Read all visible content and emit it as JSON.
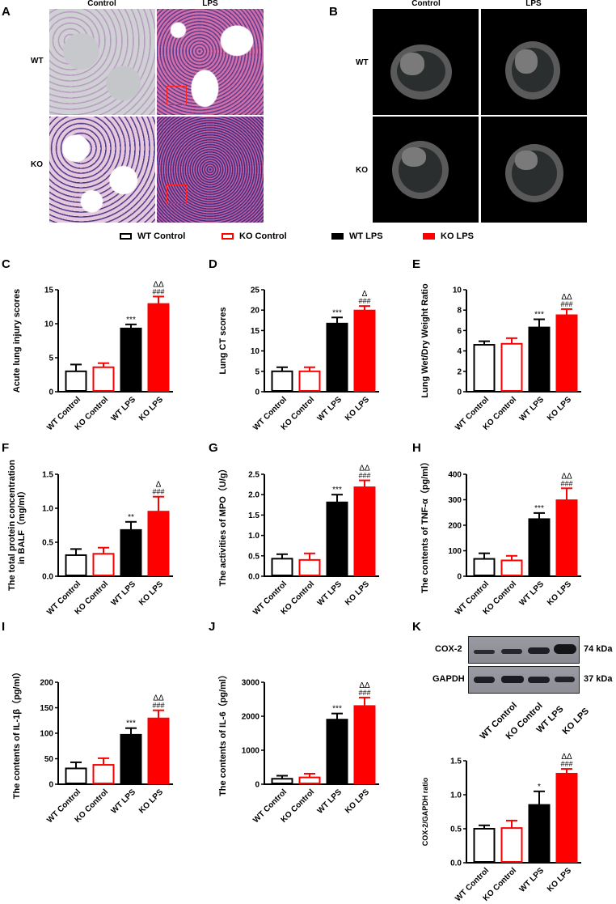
{
  "panels": {
    "A": {
      "label": "A",
      "columns": [
        "Control",
        "LPS"
      ],
      "rows": [
        "WT",
        "KO"
      ]
    },
    "B": {
      "label": "B",
      "columns": [
        "Control",
        "LPS"
      ],
      "rows": [
        "WT",
        "KO"
      ]
    },
    "K": {
      "label": "K",
      "blot": {
        "bands": [
          {
            "name": "COX-2",
            "size": "74 kDa"
          },
          {
            "name": "GAPDH",
            "size": "37 kDa"
          }
        ],
        "lanes": [
          "WT Control",
          "KO Control",
          "WT LPS",
          "KO LPS"
        ]
      }
    }
  },
  "legend": [
    {
      "label": "WT Control",
      "fill": "#ffffff",
      "stroke": "#000000"
    },
    {
      "label": "KO Control",
      "fill": "#ffffff",
      "stroke": "#ff0000"
    },
    {
      "label": "WT LPS",
      "fill": "#000000",
      "stroke": "#000000"
    },
    {
      "label": "KO LPS",
      "fill": "#ff0000",
      "stroke": "#ff0000"
    }
  ],
  "colors": {
    "black": "#000000",
    "red": "#ff0000"
  },
  "chart_data": [
    {
      "panel": "C",
      "type": "bar",
      "categories": [
        "WT Control",
        "KO Control",
        "WT LPS",
        "KO LPS"
      ],
      "values": [
        3.0,
        3.6,
        9.3,
        12.9
      ],
      "errors": [
        1.0,
        0.6,
        0.6,
        1.1
      ],
      "annotations": [
        "",
        "",
        "***",
        "###|ΔΔ"
      ],
      "ylabel": "Acute lung injury scores",
      "ylim": [
        0,
        15
      ],
      "yticks": [
        0,
        5,
        10,
        15
      ],
      "yticklabels": [
        "0",
        "5",
        "10",
        "15"
      ]
    },
    {
      "panel": "D",
      "type": "bar",
      "categories": [
        "WT Control",
        "KO Control",
        "WT LPS",
        "KO LPS"
      ],
      "values": [
        5.0,
        5.0,
        16.7,
        19.9
      ],
      "errors": [
        1.0,
        1.0,
        1.5,
        1.1
      ],
      "annotations": [
        "",
        "",
        "***",
        "###|Δ"
      ],
      "ylabel": "Lung CT scores",
      "ylim": [
        0,
        25
      ],
      "yticks": [
        0,
        5,
        10,
        15,
        20,
        25
      ],
      "yticklabels": [
        "0",
        "5",
        "10",
        "15",
        "20",
        "25"
      ]
    },
    {
      "panel": "E",
      "type": "bar",
      "categories": [
        "WT Control",
        "KO Control",
        "WT LPS",
        "KO LPS"
      ],
      "values": [
        4.6,
        4.7,
        6.3,
        7.5
      ],
      "errors": [
        0.35,
        0.55,
        0.8,
        0.6
      ],
      "annotations": [
        "",
        "",
        "***",
        "###|ΔΔ"
      ],
      "ylabel": "Lung Wet/Dry Weight  Ratio",
      "ylim": [
        0,
        10
      ],
      "yticks": [
        0,
        2,
        4,
        6,
        8,
        10
      ],
      "yticklabels": [
        "0",
        "2",
        "4",
        "6",
        "8",
        "10"
      ]
    },
    {
      "panel": "F",
      "type": "bar",
      "categories": [
        "WT Control",
        "KO Control",
        "WT LPS",
        "KO LPS"
      ],
      "values": [
        0.31,
        0.33,
        0.68,
        0.95
      ],
      "errors": [
        0.09,
        0.09,
        0.12,
        0.22
      ],
      "annotations": [
        "",
        "",
        "**",
        "###|Δ"
      ],
      "ylabel": "The total protein concentration in BALF（mg/ml）",
      "ylim": [
        0,
        1.5
      ],
      "yticks": [
        0,
        0.5,
        1.0,
        1.5
      ],
      "yticklabels": [
        "0.0",
        "0.5",
        "1.0",
        "1.5"
      ]
    },
    {
      "panel": "G",
      "type": "bar",
      "categories": [
        "WT Control",
        "KO Control",
        "WT LPS",
        "KO LPS"
      ],
      "values": [
        0.43,
        0.4,
        1.81,
        2.18
      ],
      "errors": [
        0.11,
        0.16,
        0.19,
        0.17
      ],
      "annotations": [
        "",
        "",
        "***",
        "###|ΔΔ"
      ],
      "ylabel": "The activities  of MPO（U/g）",
      "ylim": [
        0,
        2.5
      ],
      "yticks": [
        0,
        0.5,
        1.0,
        1.5,
        2.0,
        2.5
      ],
      "yticklabels": [
        "0.0",
        "0.5",
        "1.0",
        "1.5",
        "2.0",
        "2.5"
      ]
    },
    {
      "panel": "H",
      "type": "bar",
      "categories": [
        "WT Control",
        "KO Control",
        "WT LPS",
        "KO LPS"
      ],
      "values": [
        68,
        62,
        224,
        298
      ],
      "errors": [
        22,
        18,
        24,
        47
      ],
      "annotations": [
        "",
        "",
        "***",
        "###|ΔΔ"
      ],
      "ylabel": "The contents of TNF-α（pg/ml）",
      "ylim": [
        0,
        400
      ],
      "yticks": [
        0,
        100,
        200,
        300,
        400
      ],
      "yticklabels": [
        "0",
        "100",
        "200",
        "300",
        "400"
      ]
    },
    {
      "panel": "I",
      "type": "bar",
      "categories": [
        "WT Control",
        "KO Control",
        "WT LPS",
        "KO LPS"
      ],
      "values": [
        31,
        38,
        97,
        129
      ],
      "errors": [
        12,
        13,
        13,
        16
      ],
      "annotations": [
        "",
        "",
        "***",
        "###|ΔΔ"
      ],
      "ylabel": "The contents of IL-1β（pg/ml）",
      "ylim": [
        0,
        200
      ],
      "yticks": [
        0,
        50,
        100,
        150,
        200
      ],
      "yticklabels": [
        "0",
        "50",
        "100",
        "150",
        "200"
      ]
    },
    {
      "panel": "J",
      "type": "bar",
      "categories": [
        "WT Control",
        "KO Control",
        "WT LPS",
        "KO LPS"
      ],
      "values": [
        160,
        200,
        1900,
        2300
      ],
      "errors": [
        90,
        110,
        180,
        250
      ],
      "annotations": [
        "",
        "",
        "***",
        "###|ΔΔ"
      ],
      "ylabel": "The contents of IL-6（pg/ml）",
      "ylim": [
        0,
        3000
      ],
      "yticks": [
        0,
        1000,
        2000,
        3000
      ],
      "yticklabels": [
        "0",
        "1000",
        "2000",
        "3000"
      ]
    },
    {
      "panel": "K",
      "type": "bar",
      "categories": [
        "WT Control",
        "KO Control",
        "WT LPS",
        "KO LPS"
      ],
      "values": [
        0.5,
        0.51,
        0.85,
        1.31
      ],
      "errors": [
        0.05,
        0.11,
        0.2,
        0.07
      ],
      "annotations": [
        "",
        "",
        "*",
        "###|ΔΔ"
      ],
      "ylabel": "COX-2/GAPDH ratio",
      "ylim": [
        0,
        1.5
      ],
      "yticks": [
        0,
        0.5,
        1.0,
        1.5
      ],
      "yticklabels": [
        "0.0",
        "0.5",
        "1.0",
        "1.5"
      ]
    }
  ]
}
